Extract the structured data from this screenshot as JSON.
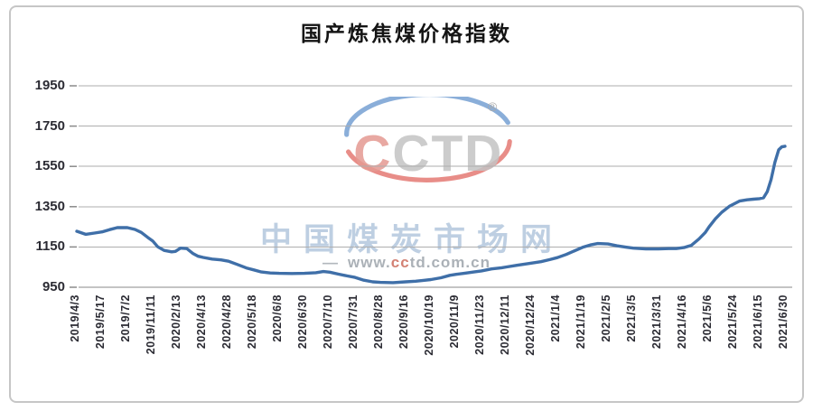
{
  "chart_data": {
    "type": "line",
    "title": "国产炼焦煤价格指数",
    "xlabel": "",
    "ylabel": "",
    "ylim": [
      950,
      1950
    ],
    "y_ticks": [
      1950,
      1750,
      1550,
      1350,
      1150,
      950
    ],
    "grid": "horizontal",
    "legend": "none",
    "categories": [
      "2019/4/3",
      "2019/5/17",
      "2019/7/2",
      "2019/11/11",
      "2020/2/13",
      "2020/4/13",
      "2020/4/28",
      "2020/5/18",
      "2020/6/8",
      "2020/6/30",
      "2020/7/10",
      "2020/7/31",
      "2020/8/28",
      "2020/9/16",
      "2020/10/19",
      "2020/11/9",
      "2020/11/23",
      "2020/12/11",
      "2020/12/24",
      "2021/1/4",
      "2021/1/19",
      "2021/2/5",
      "2021/3/5",
      "2021/3/31",
      "2021/4/16",
      "2021/5/6",
      "2021/5/24",
      "2021/6/15",
      "2021/6/30"
    ],
    "series": [
      {
        "name": "国产炼焦煤价格指数",
        "color": "#3f6fa8",
        "values": [
          1228,
          1225,
          1246,
          1180,
          1129,
          1098,
          1079,
          1036,
          1019,
          1019,
          1025,
          999,
          974,
          977,
          988,
          1014,
          1031,
          1051,
          1070,
          1097,
          1148,
          1165,
          1144,
          1140,
          1147,
          1250,
          1365,
          1390,
          1650
        ]
      }
    ],
    "trace_points": [
      [
        0,
        1228
      ],
      [
        0.35,
        1213
      ],
      [
        0.7,
        1219
      ],
      [
        1,
        1225
      ],
      [
        1.3,
        1236
      ],
      [
        1.6,
        1246
      ],
      [
        2,
        1246
      ],
      [
        2.3,
        1237
      ],
      [
        2.55,
        1222
      ],
      [
        2.8,
        1198
      ],
      [
        3,
        1180
      ],
      [
        3.2,
        1151
      ],
      [
        3.45,
        1133
      ],
      [
        3.75,
        1126
      ],
      [
        3.9,
        1128
      ],
      [
        4.1,
        1144
      ],
      [
        4.35,
        1142
      ],
      [
        4.6,
        1117
      ],
      [
        4.8,
        1104
      ],
      [
        5,
        1098
      ],
      [
        5.35,
        1090
      ],
      [
        5.7,
        1086
      ],
      [
        6,
        1079
      ],
      [
        6.35,
        1063
      ],
      [
        6.7,
        1046
      ],
      [
        7,
        1036
      ],
      [
        7.3,
        1026
      ],
      [
        7.65,
        1021
      ],
      [
        8,
        1019
      ],
      [
        8.5,
        1018
      ],
      [
        9,
        1019
      ],
      [
        9.45,
        1022
      ],
      [
        9.75,
        1028
      ],
      [
        10,
        1025
      ],
      [
        10.35,
        1015
      ],
      [
        10.7,
        1006
      ],
      [
        11,
        999
      ],
      [
        11.35,
        985
      ],
      [
        11.7,
        977
      ],
      [
        12,
        974
      ],
      [
        12.5,
        973
      ],
      [
        13,
        977
      ],
      [
        13.4,
        980
      ],
      [
        13.7,
        984
      ],
      [
        14,
        988
      ],
      [
        14.4,
        997
      ],
      [
        14.75,
        1009
      ],
      [
        15,
        1014
      ],
      [
        15.35,
        1020
      ],
      [
        15.7,
        1026
      ],
      [
        16,
        1031
      ],
      [
        16.4,
        1041
      ],
      [
        16.8,
        1047
      ],
      [
        17,
        1051
      ],
      [
        17.4,
        1059
      ],
      [
        17.7,
        1065
      ],
      [
        18,
        1070
      ],
      [
        18.35,
        1077
      ],
      [
        18.7,
        1087
      ],
      [
        19,
        1097
      ],
      [
        19.35,
        1113
      ],
      [
        19.7,
        1132
      ],
      [
        20,
        1148
      ],
      [
        20.3,
        1160
      ],
      [
        20.6,
        1167
      ],
      [
        21,
        1165
      ],
      [
        21.35,
        1156
      ],
      [
        21.7,
        1149
      ],
      [
        22,
        1144
      ],
      [
        22.5,
        1140
      ],
      [
        23,
        1140
      ],
      [
        23.4,
        1142
      ],
      [
        23.7,
        1142
      ],
      [
        24,
        1147
      ],
      [
        24.3,
        1158
      ],
      [
        24.6,
        1190
      ],
      [
        24.85,
        1222
      ],
      [
        25,
        1250
      ],
      [
        25.25,
        1290
      ],
      [
        25.5,
        1322
      ],
      [
        25.8,
        1352
      ],
      [
        26,
        1365
      ],
      [
        26.2,
        1378
      ],
      [
        26.5,
        1384
      ],
      [
        26.75,
        1387
      ],
      [
        27,
        1390
      ],
      [
        27.15,
        1394
      ],
      [
        27.3,
        1425
      ],
      [
        27.45,
        1485
      ],
      [
        27.6,
        1570
      ],
      [
        27.75,
        1632
      ],
      [
        27.87,
        1647
      ],
      [
        28,
        1650
      ]
    ]
  },
  "watermark": {
    "logo_first_letter": "C",
    "logo_rest_letters": "CTD",
    "registered_symbol": "®",
    "site_name": "中国煤炭市场网",
    "url_dash": "—",
    "url_www": "www.",
    "url_accent": "cc",
    "url_rest": "td.com.cn"
  },
  "style_colors": {
    "line": "#3f6fa8",
    "gridline": "#aeaeae",
    "axis_line": "#8a8a8a",
    "logo_blue_arc": "#6d9ad0",
    "logo_red_arc": "#e2706a",
    "logo_letter_gray": "#c4c4c4",
    "logo_letter_red": "#e59a92"
  }
}
